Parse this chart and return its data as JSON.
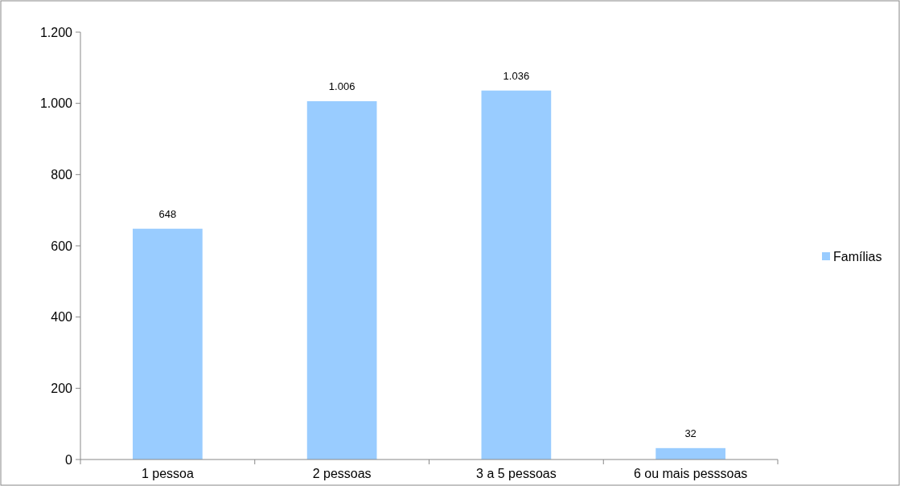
{
  "chart_data": {
    "type": "bar",
    "categories": [
      "1 pessoa",
      "2 pessoas",
      "3 a 5 pessoas",
      "6 ou mais pesssoas"
    ],
    "series": [
      {
        "name": "Famílias",
        "color": "#99ccff",
        "values": [
          648,
          1006,
          1036,
          32
        ],
        "value_labels": [
          "648",
          "1.006",
          "1.036",
          "32"
        ]
      }
    ],
    "ylim": [
      0,
      1200
    ],
    "yticks": [
      0,
      200,
      400,
      600,
      800,
      {
        "value": 1000,
        "label": "1.000"
      },
      {
        "value": 1200,
        "label": "1.200"
      }
    ],
    "grid": false,
    "legend": "right"
  }
}
